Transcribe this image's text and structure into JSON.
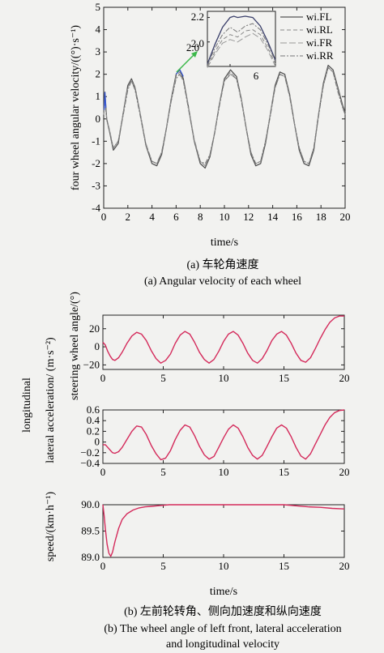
{
  "figure_a": {
    "caption_cn": "(a) 车轮角速度",
    "caption_en": "(a) Angular velocity of each wheel"
  },
  "figure_b": {
    "caption_cn": "(b) 左前轮转角、侧向加速度和纵向速度",
    "caption_en_line1": "(b) The wheel angle of left front, lateral acceleration",
    "caption_en_line2": "and longitudinal velocity"
  },
  "chart_data": [
    {
      "type": "line",
      "ylabel": "four wheel angular velocity/((°)·s⁻¹)",
      "xlabel": "time/s",
      "xlim": [
        0,
        20
      ],
      "ylim": [
        -4,
        5
      ],
      "xticks": [
        "0",
        "2",
        "4",
        "6",
        "8",
        "10",
        "12",
        "14",
        "16",
        "18",
        "20"
      ],
      "yticks": [
        "-4",
        "-3",
        "-2",
        "-1",
        "0",
        "1",
        "2",
        "3",
        "4",
        "5"
      ],
      "legend": [
        "wi.FL",
        "wi.RL",
        "wi.FR",
        "wi.RR"
      ],
      "legend_position": "top-right",
      "series_colors": [
        "#555555",
        "#888888",
        "#999999",
        "#777777"
      ],
      "series": [
        {
          "name": "wi.FL",
          "x": [
            0,
            0.1,
            0.25,
            0.5,
            0.8,
            1.2,
            1.6,
            2.0,
            2.3,
            2.6,
            3.0,
            3.5,
            4.0,
            4.4,
            4.8,
            5.2,
            5.6,
            6.0,
            6.3,
            6.6,
            7.0,
            7.5,
            8.0,
            8.4,
            8.8,
            9.2,
            9.6,
            10.0,
            10.5,
            11.0,
            11.4,
            11.8,
            12.2,
            12.6,
            13.0,
            13.4,
            13.8,
            14.2,
            14.6,
            15.0,
            15.4,
            15.8,
            16.2,
            16.6,
            17.0,
            17.4,
            17.8,
            18.2,
            18.6,
            19.0,
            19.4,
            19.8,
            20.0
          ],
          "y": [
            0.3,
            1.2,
            0.0,
            -0.6,
            -1.4,
            -1.1,
            0.2,
            1.5,
            1.8,
            1.4,
            0.3,
            -1.2,
            -2.0,
            -2.1,
            -1.6,
            -0.4,
            0.9,
            2.0,
            2.2,
            1.8,
            0.6,
            -1.0,
            -2.0,
            -2.2,
            -1.7,
            -0.6,
            0.7,
            1.8,
            2.2,
            1.9,
            0.9,
            -0.4,
            -1.6,
            -2.1,
            -2.0,
            -1.1,
            0.2,
            1.5,
            2.1,
            2.0,
            1.1,
            -0.2,
            -1.4,
            -2.0,
            -2.1,
            -1.4,
            0.2,
            1.6,
            2.4,
            2.2,
            1.4,
            0.6,
            0.3
          ]
        },
        {
          "name": "wi.RL",
          "x": [
            0,
            0.1,
            0.25,
            0.5,
            0.8,
            1.2,
            1.6,
            2.0,
            2.3,
            2.6,
            3.0,
            3.5,
            4.0,
            4.4,
            4.8,
            5.2,
            5.6,
            6.0,
            6.3,
            6.6,
            7.0,
            7.5,
            8.0,
            8.4,
            8.8,
            9.2,
            9.6,
            10.0,
            10.5,
            11.0,
            11.4,
            11.8,
            12.2,
            12.6,
            13.0,
            13.4,
            13.8,
            14.2,
            14.6,
            15.0,
            15.4,
            15.8,
            16.2,
            16.6,
            17.0,
            17.4,
            17.8,
            18.2,
            18.6,
            19.0,
            19.4,
            19.8,
            20.0
          ],
          "y": [
            0.2,
            0.9,
            0.0,
            -0.6,
            -1.3,
            -1.0,
            0.2,
            1.4,
            1.7,
            1.4,
            0.3,
            -1.2,
            -1.9,
            -2.0,
            -1.5,
            -0.4,
            0.9,
            1.9,
            2.1,
            1.7,
            0.6,
            -1.0,
            -1.9,
            -2.1,
            -1.6,
            -0.6,
            0.7,
            1.7,
            2.1,
            1.8,
            0.9,
            -0.4,
            -1.5,
            -2.0,
            -1.9,
            -1.0,
            0.2,
            1.4,
            2.0,
            1.9,
            1.1,
            -0.2,
            -1.3,
            -1.9,
            -2.0,
            -1.3,
            0.2,
            1.5,
            2.3,
            2.1,
            1.3,
            0.5,
            0.2
          ]
        },
        {
          "name": "wi.FR",
          "x": [
            0,
            0.1,
            0.25,
            0.5,
            0.8,
            1.2,
            1.6,
            2.0,
            2.3,
            2.6,
            3.0,
            3.5,
            4.0,
            4.4,
            4.8,
            5.2,
            5.6,
            6.0,
            6.3,
            6.6,
            7.0,
            7.5,
            8.0,
            8.4,
            8.8,
            9.2,
            9.6,
            10.0,
            10.5,
            11.0,
            11.4,
            11.8,
            12.2,
            12.6,
            13.0,
            13.4,
            13.8,
            14.2,
            14.6,
            15.0,
            15.4,
            15.8,
            16.2,
            16.6,
            17.0,
            17.4,
            17.8,
            18.2,
            18.6,
            19.0,
            19.4,
            19.8,
            20.0
          ],
          "y": [
            0.2,
            1.0,
            0.0,
            -0.5,
            -1.3,
            -1.0,
            0.2,
            1.4,
            1.7,
            1.3,
            0.3,
            -1.1,
            -1.9,
            -2.0,
            -1.5,
            -0.4,
            0.8,
            1.9,
            2.0,
            1.7,
            0.6,
            -0.9,
            -1.9,
            -2.1,
            -1.6,
            -0.6,
            0.7,
            1.7,
            2.0,
            1.8,
            0.9,
            -0.4,
            -1.5,
            -2.0,
            -1.9,
            -1.0,
            0.2,
            1.4,
            2.0,
            1.9,
            1.0,
            -0.2,
            -1.3,
            -1.9,
            -2.0,
            -1.3,
            0.2,
            1.5,
            2.3,
            2.1,
            1.3,
            0.5,
            0.2
          ]
        },
        {
          "name": "wi.RR",
          "x": [
            0,
            0.1,
            0.25,
            0.5,
            0.8,
            1.2,
            1.6,
            2.0,
            2.3,
            2.6,
            3.0,
            3.5,
            4.0,
            4.4,
            4.8,
            5.2,
            5.6,
            6.0,
            6.3,
            6.6,
            7.0,
            7.5,
            8.0,
            8.4,
            8.8,
            9.2,
            9.6,
            10.0,
            10.5,
            11.0,
            11.4,
            11.8,
            12.2,
            12.6,
            13.0,
            13.4,
            13.8,
            14.2,
            14.6,
            15.0,
            15.4,
            15.8,
            16.2,
            16.6,
            17.0,
            17.4,
            17.8,
            18.2,
            18.6,
            19.0,
            19.4,
            19.8,
            20.0
          ],
          "y": [
            0.2,
            0.8,
            0.0,
            -0.6,
            -1.3,
            -1.0,
            0.1,
            1.3,
            1.7,
            1.3,
            0.2,
            -1.2,
            -1.9,
            -2.0,
            -1.5,
            -0.4,
            0.8,
            1.8,
            2.0,
            1.7,
            0.5,
            -1.0,
            -1.9,
            -2.0,
            -1.6,
            -0.6,
            0.6,
            1.7,
            2.0,
            1.8,
            0.8,
            -0.4,
            -1.5,
            -2.0,
            -1.9,
            -1.0,
            0.1,
            1.4,
            2.0,
            1.9,
            1.0,
            -0.2,
            -1.3,
            -1.9,
            -2.0,
            -1.3,
            0.1,
            1.5,
            2.3,
            2.1,
            1.2,
            0.5,
            0.2
          ]
        }
      ],
      "annotation": {
        "text": "2.0"
      },
      "inset": {
        "xlim": [
          5.7,
          6.6
        ],
        "ylim": [
          1.8,
          2.25
        ],
        "xticks": [
          "6"
        ],
        "yticks": [
          "2.2",
          "2.0"
        ],
        "x": [
          5.7,
          5.8,
          5.9,
          6.0,
          6.05,
          6.1,
          6.2,
          6.3,
          6.4,
          6.5,
          6.6
        ],
        "series": [
          {
            "name": "wi.FL",
            "y": [
              1.82,
              1.98,
              2.12,
              2.2,
              2.21,
              2.2,
              2.21,
              2.2,
              2.13,
              2.0,
              1.85
            ]
          },
          {
            "name": "wi.RL",
            "y": [
              1.8,
              1.92,
              2.02,
              2.06,
              2.05,
              2.04,
              2.09,
              2.1,
              2.06,
              1.95,
              1.82
            ]
          },
          {
            "name": "wi.FR",
            "y": [
              1.79,
              1.9,
              1.99,
              2.02,
              2.01,
              2.0,
              2.04,
              2.07,
              2.03,
              1.93,
              1.8
            ]
          },
          {
            "name": "wi.RR",
            "y": [
              1.81,
              1.95,
              2.06,
              2.12,
              2.1,
              2.08,
              2.13,
              2.15,
              2.1,
              1.98,
              1.84
            ]
          }
        ]
      }
    },
    {
      "type": "line",
      "ylabel": "steering wheel angle/(°)",
      "xlim": [
        0,
        20
      ],
      "ylim": [
        -25,
        35
      ],
      "xticks": [
        "0",
        "5",
        "10",
        "15",
        "20"
      ],
      "yticks": [
        "20",
        "0",
        "−20"
      ],
      "series_colors": [
        "#d42a5b"
      ],
      "series": [
        {
          "x": [
            0,
            0.2,
            0.4,
            0.6,
            0.8,
            1.0,
            1.3,
            1.6,
            2.0,
            2.4,
            2.8,
            3.2,
            3.6,
            4.0,
            4.4,
            4.8,
            5.2,
            5.6,
            6.0,
            6.4,
            6.8,
            7.2,
            7.6,
            8.0,
            8.4,
            8.8,
            9.2,
            9.6,
            10.0,
            10.4,
            10.8,
            11.2,
            11.6,
            12.0,
            12.4,
            12.8,
            13.2,
            13.6,
            14.0,
            14.4,
            14.8,
            15.2,
            15.6,
            16.0,
            16.4,
            16.8,
            17.2,
            17.6,
            18.0,
            18.4,
            18.8,
            19.2,
            19.6,
            20.0
          ],
          "y": [
            5,
            2,
            -5,
            -10,
            -14,
            -15,
            -12,
            -6,
            4,
            12,
            16,
            14,
            7,
            -4,
            -13,
            -18,
            -15,
            -8,
            4,
            13,
            17,
            14,
            5,
            -6,
            -14,
            -18,
            -14,
            -5,
            6,
            14,
            17,
            13,
            4,
            -7,
            -15,
            -18,
            -13,
            -4,
            7,
            14,
            17,
            13,
            4,
            -7,
            -15,
            -17,
            -12,
            -2,
            9,
            19,
            27,
            32,
            34,
            34
          ]
        }
      ]
    },
    {
      "type": "line",
      "ylabel": "lateral acceleration/ (m·s⁻²)",
      "xlim": [
        0,
        20
      ],
      "ylim": [
        -0.4,
        0.6
      ],
      "xticks": [
        "0",
        "5",
        "10",
        "15",
        "20"
      ],
      "yticks": [
        "0.6",
        "0.4",
        "0.2",
        "0",
        "−0.2",
        "−0.4"
      ],
      "series_colors": [
        "#d42a5b"
      ],
      "series": [
        {
          "x": [
            0,
            0.2,
            0.4,
            0.6,
            0.8,
            1.0,
            1.3,
            1.6,
            2.0,
            2.4,
            2.8,
            3.2,
            3.6,
            4.0,
            4.4,
            4.8,
            5.2,
            5.6,
            6.0,
            6.4,
            6.8,
            7.2,
            7.6,
            8.0,
            8.4,
            8.8,
            9.2,
            9.6,
            10.0,
            10.4,
            10.8,
            11.2,
            11.6,
            12.0,
            12.4,
            12.8,
            13.2,
            13.6,
            14.0,
            14.4,
            14.8,
            15.2,
            15.6,
            16.0,
            16.4,
            16.8,
            17.2,
            17.6,
            18.0,
            18.4,
            18.8,
            19.2,
            19.6,
            20.0
          ],
          "y": [
            -0.05,
            -0.05,
            -0.1,
            -0.15,
            -0.2,
            -0.21,
            -0.18,
            -0.1,
            0.05,
            0.2,
            0.3,
            0.28,
            0.14,
            -0.06,
            -0.22,
            -0.33,
            -0.3,
            -0.16,
            0.05,
            0.22,
            0.32,
            0.28,
            0.12,
            -0.08,
            -0.24,
            -0.32,
            -0.27,
            -0.1,
            0.08,
            0.24,
            0.32,
            0.26,
            0.1,
            -0.1,
            -0.25,
            -0.32,
            -0.25,
            -0.08,
            0.1,
            0.26,
            0.32,
            0.26,
            0.1,
            -0.1,
            -0.26,
            -0.32,
            -0.22,
            -0.04,
            0.14,
            0.32,
            0.46,
            0.55,
            0.59,
            0.6
          ]
        }
      ]
    },
    {
      "type": "line",
      "ylabel": "speed/(km·h⁻¹)",
      "xlabel": "time/s",
      "xlim": [
        0,
        20
      ],
      "ylim": [
        89.0,
        90.0
      ],
      "xticks": [
        "0",
        "5",
        "10",
        "15",
        "20"
      ],
      "yticks": [
        "90.0",
        "89.5",
        "89.0"
      ],
      "series_colors": [
        "#d42a5b"
      ],
      "series": [
        {
          "x": [
            0,
            0.1,
            0.2,
            0.35,
            0.5,
            0.65,
            0.8,
            1.0,
            1.3,
            1.6,
            2.0,
            2.5,
            3.0,
            3.5,
            4.0,
            4.5,
            5.0,
            5.5,
            6.0,
            7.0,
            8.0,
            9.0,
            10.0,
            11.0,
            12.0,
            13.0,
            14.0,
            15.0,
            16.0,
            17.0,
            18.0,
            19.0,
            20.0
          ],
          "y": [
            90.0,
            89.8,
            89.55,
            89.25,
            89.08,
            89.02,
            89.1,
            89.3,
            89.55,
            89.72,
            89.83,
            89.9,
            89.94,
            89.96,
            89.97,
            89.98,
            89.99,
            90.0,
            90.0,
            90.0,
            90.0,
            90.0,
            90.0,
            90.0,
            90.0,
            90.0,
            90.0,
            90.0,
            89.98,
            89.96,
            89.95,
            89.93,
            89.92
          ]
        }
      ]
    }
  ],
  "shared_ylabel_b": "longitudinal"
}
